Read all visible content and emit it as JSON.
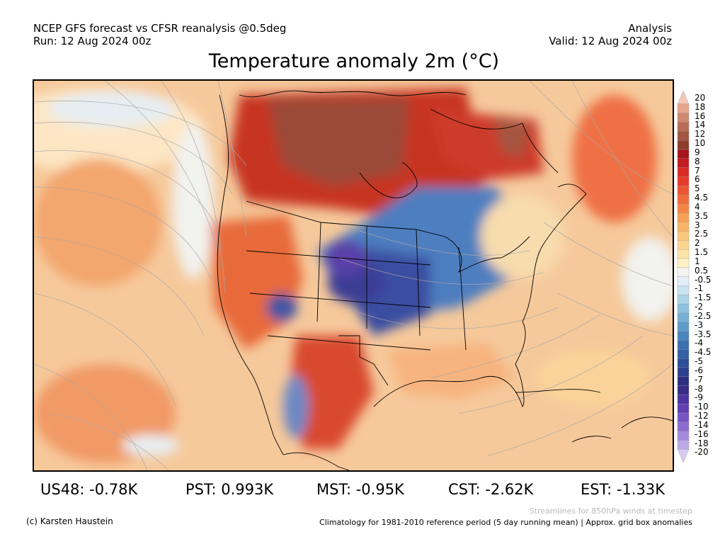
{
  "header": {
    "model_line": "NCEP GFS forecast vs CFSR reanalysis @0.5deg",
    "run_line": "Run: 12 Aug 2024 00z",
    "kind": "Analysis",
    "valid_line": "Valid: 12 Aug 2024 00z"
  },
  "title": "Temperature anomaly 2m (°C)",
  "colorbar": {
    "levels": [
      "20",
      "18",
      "16",
      "14",
      "12",
      "10",
      "9",
      "8",
      "7",
      "6",
      "5",
      "4.5",
      "4",
      "3.5",
      "3",
      "2.5",
      "2",
      "1.5",
      "1",
      "0.5",
      "-0.5",
      "-1",
      "-1.5",
      "-2",
      "-2.5",
      "-3",
      "-3.5",
      "-4",
      "-4.5",
      "-5",
      "-6",
      "-7",
      "-8",
      "-9",
      "-10",
      "-12",
      "-14",
      "-16",
      "-18",
      "-20"
    ],
    "colors": [
      "#f4c8b8",
      "#e7a58e",
      "#cf8a70",
      "#b96c57",
      "#a2553f",
      "#8e3d2b",
      "#a6151b",
      "#c21b21",
      "#d92a24",
      "#e73a2a",
      "#ee5434",
      "#f26b3c",
      "#f48548",
      "#f6a057",
      "#f8b46a",
      "#fac67c",
      "#fbd58f",
      "#fce3a6",
      "#fdf1c8",
      "#f2f2ee",
      "#e4eff7",
      "#c8e2f0",
      "#acd3e8",
      "#8ec2df",
      "#75afd4",
      "#5f9bc9",
      "#4a86bd",
      "#3c70b0",
      "#3460a6",
      "#2e4e98",
      "#2b3f8c",
      "#2e2f80",
      "#3a2b86",
      "#4d34a0",
      "#6040b2",
      "#7754c3",
      "#8c6cd1",
      "#a48adc",
      "#bda9e6",
      "#d7caf1"
    ]
  },
  "regions": [
    {
      "label": "US48: -0.78K"
    },
    {
      "label": "PST: 0.993K"
    },
    {
      "label": "MST: -0.95K"
    },
    {
      "label": "CST: -2.62K"
    },
    {
      "label": "EST: -1.33K"
    }
  ],
  "footer": {
    "credit": "(c) Karsten Haustein",
    "streamlines_note": "Streamlines for 850hPa winds at timestep",
    "climatology_note": "Climatology for 1981-2010 reference period (5 day running mean) | Approx. grid box anomalies"
  },
  "map": {
    "background_color": "#f6c99b",
    "land_outline_color": "#000000",
    "streamline_color": "#a8a8a8"
  }
}
